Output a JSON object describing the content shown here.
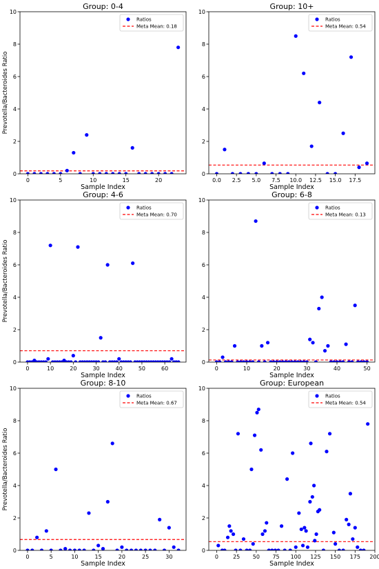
{
  "colors": {
    "points": "#0000ff",
    "mean_line": "#ff0000"
  },
  "chart_data": [
    {
      "type": "scatter",
      "title": "Group: 0-4",
      "xlabel": "Sample Index",
      "ylabel": "Prevotella/Bacteroides Ratio",
      "xlim": [
        -1.2,
        24.2
      ],
      "ylim": [
        0,
        10
      ],
      "xticks": [
        0,
        5,
        10,
        15,
        20
      ],
      "xtick_labels": [
        "0",
        "5",
        "10",
        "15",
        "20"
      ],
      "yticks": [
        0,
        2,
        4,
        6,
        8,
        10
      ],
      "ytick_labels": [
        "0",
        "2",
        "4",
        "6",
        "8",
        "10"
      ],
      "legend": {
        "position": "top-right",
        "points_label": "Ratios",
        "mean_label": "Meta Mean: 0.18"
      },
      "mean": 0.18,
      "points": [
        [
          0,
          0
        ],
        [
          1,
          0
        ],
        [
          2,
          0
        ],
        [
          3,
          0
        ],
        [
          4,
          0
        ],
        [
          5,
          0
        ],
        [
          6,
          0.2
        ],
        [
          7,
          1.3
        ],
        [
          8,
          0
        ],
        [
          9,
          2.4
        ],
        [
          10,
          0
        ],
        [
          11,
          0
        ],
        [
          12,
          0
        ],
        [
          13,
          0
        ],
        [
          14,
          0
        ],
        [
          15,
          0
        ],
        [
          16,
          1.6
        ],
        [
          17,
          0
        ],
        [
          18,
          0
        ],
        [
          19,
          0
        ],
        [
          20,
          0
        ],
        [
          21,
          0
        ],
        [
          22,
          0
        ],
        [
          23,
          7.8
        ]
      ]
    },
    {
      "type": "scatter",
      "title": "Group: 10+",
      "xlabel": "Sample Index",
      "ylabel": "",
      "xlim": [
        -1.0,
        20.0
      ],
      "ylim": [
        0,
        10
      ],
      "xticks": [
        0,
        2.5,
        5,
        7.5,
        10,
        12.5,
        15,
        17.5
      ],
      "xtick_labels": [
        "0.0",
        "2.5",
        "5.0",
        "7.5",
        "10.0",
        "12.5",
        "15.0",
        "17.5"
      ],
      "yticks": [
        0,
        2,
        4,
        6,
        8,
        10
      ],
      "ytick_labels": [
        "0",
        "2",
        "4",
        "6",
        "8",
        "10"
      ],
      "legend": {
        "position": "top-right",
        "points_label": "Ratios",
        "mean_label": "Meta Mean: 0.54"
      },
      "mean": 0.54,
      "points": [
        [
          0,
          0
        ],
        [
          1,
          1.5
        ],
        [
          2,
          0
        ],
        [
          3,
          0
        ],
        [
          4,
          0
        ],
        [
          5,
          0
        ],
        [
          6,
          0.65
        ],
        [
          7,
          0
        ],
        [
          8,
          0
        ],
        [
          9,
          0
        ],
        [
          10,
          8.5
        ],
        [
          11,
          6.2
        ],
        [
          12,
          1.7
        ],
        [
          13,
          4.4
        ],
        [
          14,
          0
        ],
        [
          15,
          0
        ],
        [
          16,
          2.5
        ],
        [
          17,
          7.2
        ],
        [
          18,
          0.4
        ],
        [
          19,
          0.65
        ]
      ]
    },
    {
      "type": "scatter",
      "title": "Group: 4-6",
      "xlabel": "Sample Index",
      "ylabel": "Prevotella/Bacteroides Ratio",
      "xlim": [
        -3.3,
        69.3
      ],
      "ylim": [
        0,
        10
      ],
      "xticks": [
        0,
        10,
        20,
        30,
        40,
        50,
        60
      ],
      "xtick_labels": [
        "0",
        "10",
        "20",
        "30",
        "40",
        "50",
        "60"
      ],
      "yticks": [
        0,
        2,
        4,
        6,
        8,
        10
      ],
      "ytick_labels": [
        "0",
        "2",
        "4",
        "6",
        "8",
        "10"
      ],
      "legend": {
        "position": "top-right",
        "points_label": "Ratios",
        "mean_label": "Meta Mean: 0.70"
      },
      "mean": 0.7,
      "points": [
        [
          0,
          0
        ],
        [
          1,
          0
        ],
        [
          2,
          0
        ],
        [
          3,
          0.1
        ],
        [
          4,
          0
        ],
        [
          5,
          0
        ],
        [
          6,
          0
        ],
        [
          7,
          0
        ],
        [
          8,
          0
        ],
        [
          9,
          0.2
        ],
        [
          10,
          7.2
        ],
        [
          11,
          0
        ],
        [
          12,
          0
        ],
        [
          13,
          0
        ],
        [
          14,
          0
        ],
        [
          15,
          0
        ],
        [
          16,
          0.1
        ],
        [
          17,
          0
        ],
        [
          18,
          0
        ],
        [
          19,
          0
        ],
        [
          20,
          0.4
        ],
        [
          21,
          0
        ],
        [
          22,
          7.1
        ],
        [
          23,
          0
        ],
        [
          24,
          0
        ],
        [
          25,
          0
        ],
        [
          26,
          0
        ],
        [
          27,
          0
        ],
        [
          28,
          0
        ],
        [
          29,
          0
        ],
        [
          30,
          0
        ],
        [
          31,
          0
        ],
        [
          32,
          1.5
        ],
        [
          33,
          0
        ],
        [
          34,
          0
        ],
        [
          35,
          6.0
        ],
        [
          36,
          0
        ],
        [
          37,
          0
        ],
        [
          38,
          0
        ],
        [
          39,
          0
        ],
        [
          40,
          0.2
        ],
        [
          41,
          0
        ],
        [
          42,
          0
        ],
        [
          43,
          0
        ],
        [
          44,
          0
        ],
        [
          45,
          0
        ],
        [
          46,
          6.1
        ],
        [
          47,
          0
        ],
        [
          48,
          0
        ],
        [
          49,
          0
        ],
        [
          50,
          0
        ],
        [
          51,
          0
        ],
        [
          52,
          0
        ],
        [
          53,
          0
        ],
        [
          54,
          0
        ],
        [
          55,
          0
        ],
        [
          56,
          0
        ],
        [
          57,
          0
        ],
        [
          58,
          0
        ],
        [
          59,
          0
        ],
        [
          60,
          0
        ],
        [
          61,
          0
        ],
        [
          62,
          0
        ],
        [
          63,
          0.2
        ],
        [
          64,
          0
        ],
        [
          65,
          0
        ],
        [
          66,
          0
        ]
      ]
    },
    {
      "type": "scatter",
      "title": "Group: 6-8",
      "xlabel": "Sample Index",
      "ylabel": "",
      "xlim": [
        -2.6,
        52.6
      ],
      "ylim": [
        0,
        10
      ],
      "xticks": [
        0,
        10,
        20,
        30,
        40,
        50
      ],
      "xtick_labels": [
        "0",
        "10",
        "20",
        "30",
        "40",
        "50"
      ],
      "yticks": [
        0,
        2,
        4,
        6,
        8,
        10
      ],
      "ytick_labels": [
        "0",
        "2",
        "4",
        "6",
        "8",
        "10"
      ],
      "legend": {
        "position": "top-right",
        "points_label": "Ratios",
        "mean_label": "Meta Mean: 0.13"
      },
      "mean": 0.13,
      "points": [
        [
          0,
          0
        ],
        [
          1,
          0
        ],
        [
          2,
          0.3
        ],
        [
          3,
          0
        ],
        [
          4,
          0
        ],
        [
          5,
          0
        ],
        [
          6,
          1.0
        ],
        [
          7,
          0
        ],
        [
          8,
          0
        ],
        [
          9,
          0
        ],
        [
          10,
          0
        ],
        [
          11,
          0
        ],
        [
          12,
          0
        ],
        [
          13,
          8.7
        ],
        [
          14,
          0
        ],
        [
          15,
          1.0
        ],
        [
          16,
          0
        ],
        [
          17,
          1.2
        ],
        [
          18,
          0
        ],
        [
          19,
          0
        ],
        [
          20,
          0
        ],
        [
          21,
          0
        ],
        [
          22,
          0
        ],
        [
          23,
          0
        ],
        [
          24,
          0
        ],
        [
          25,
          0
        ],
        [
          26,
          0
        ],
        [
          27,
          0
        ],
        [
          28,
          0
        ],
        [
          29,
          0
        ],
        [
          30,
          0
        ],
        [
          31,
          1.4
        ],
        [
          32,
          1.2
        ],
        [
          33,
          0
        ],
        [
          34,
          3.3
        ],
        [
          35,
          4.0
        ],
        [
          36,
          0.7
        ],
        [
          37,
          1.0
        ],
        [
          38,
          0
        ],
        [
          39,
          0
        ],
        [
          40,
          0
        ],
        [
          41,
          0
        ],
        [
          42,
          0
        ],
        [
          43,
          1.1
        ],
        [
          44,
          0
        ],
        [
          45,
          0
        ],
        [
          46,
          3.5
        ],
        [
          47,
          0
        ],
        [
          48,
          0
        ],
        [
          49,
          0
        ],
        [
          50,
          0
        ]
      ]
    },
    {
      "type": "scatter",
      "title": "Group: 8-10",
      "xlabel": "Sample Index",
      "ylabel": "Prevotella/Bacteroides Ratio",
      "xlim": [
        -1.6,
        33.6
      ],
      "ylim": [
        0,
        10
      ],
      "xticks": [
        0,
        5,
        10,
        15,
        20,
        25,
        30
      ],
      "xtick_labels": [
        "0",
        "5",
        "10",
        "15",
        "20",
        "25",
        "30"
      ],
      "yticks": [
        0,
        2,
        4,
        6,
        8,
        10
      ],
      "ytick_labels": [
        "0",
        "2",
        "4",
        "6",
        "8",
        "10"
      ],
      "legend": {
        "position": "top-right",
        "points_label": "Ratios",
        "mean_label": "Meta Mean: 0.67"
      },
      "mean": 0.67,
      "points": [
        [
          0,
          0
        ],
        [
          1,
          0
        ],
        [
          2,
          0.8
        ],
        [
          3,
          0
        ],
        [
          4,
          1.2
        ],
        [
          5,
          0
        ],
        [
          6,
          5.0
        ],
        [
          7,
          0
        ],
        [
          8,
          0.1
        ],
        [
          9,
          0
        ],
        [
          10,
          0
        ],
        [
          11,
          0
        ],
        [
          12,
          0
        ],
        [
          13,
          2.3
        ],
        [
          14,
          0
        ],
        [
          15,
          0.3
        ],
        [
          16,
          0.1
        ],
        [
          17,
          3.0
        ],
        [
          18,
          6.6
        ],
        [
          19,
          0
        ],
        [
          20,
          0.2
        ],
        [
          21,
          0
        ],
        [
          22,
          0
        ],
        [
          23,
          0
        ],
        [
          24,
          0
        ],
        [
          25,
          0
        ],
        [
          26,
          0
        ],
        [
          27,
          0
        ],
        [
          28,
          1.9
        ],
        [
          29,
          0
        ],
        [
          30,
          1.4
        ],
        [
          31,
          0.2
        ],
        [
          32,
          0
        ]
      ]
    },
    {
      "type": "scatter",
      "title": "Group: European",
      "xlabel": "Sample Index",
      "ylabel": "",
      "xlim": [
        -10,
        200
      ],
      "ylim": [
        0,
        10
      ],
      "xticks": [
        0,
        25,
        50,
        75,
        100,
        125,
        150,
        175,
        200
      ],
      "xtick_labels": [
        "0",
        "25",
        "50",
        "75",
        "100",
        "125",
        "150",
        "175",
        "200"
      ],
      "yticks": [
        0,
        2,
        4,
        6,
        8,
        10
      ],
      "ytick_labels": [
        "0",
        "2",
        "4",
        "6",
        "8",
        "10"
      ],
      "legend": {
        "position": "top-right",
        "points_label": "Ratios",
        "mean_label": "Meta Mean: 0.54"
      },
      "mean": 0.54,
      "points": [
        [
          2,
          0.3
        ],
        [
          7,
          0
        ],
        [
          10,
          0
        ],
        [
          14,
          0.8
        ],
        [
          16,
          1.5
        ],
        [
          18,
          1.2
        ],
        [
          21,
          1.0
        ],
        [
          24,
          0
        ],
        [
          27,
          7.2
        ],
        [
          30,
          0
        ],
        [
          34,
          0.7
        ],
        [
          38,
          0
        ],
        [
          42,
          0
        ],
        [
          44,
          5.0
        ],
        [
          46,
          0.4
        ],
        [
          48,
          7.1
        ],
        [
          51,
          8.5
        ],
        [
          53,
          8.7
        ],
        [
          56,
          6.2
        ],
        [
          58,
          1.0
        ],
        [
          61,
          1.2
        ],
        [
          63,
          1.7
        ],
        [
          66,
          0
        ],
        [
          70,
          0
        ],
        [
          74,
          0
        ],
        [
          78,
          0
        ],
        [
          82,
          1.5
        ],
        [
          86,
          0
        ],
        [
          89,
          4.4
        ],
        [
          93,
          0
        ],
        [
          96,
          6.0
        ],
        [
          100,
          0.2
        ],
        [
          104,
          2.3
        ],
        [
          107,
          1.3
        ],
        [
          109,
          0.3
        ],
        [
          111,
          1.4
        ],
        [
          113,
          1.2
        ],
        [
          115,
          0.2
        ],
        [
          118,
          3.0
        ],
        [
          119,
          6.6
        ],
        [
          121,
          3.3
        ],
        [
          123,
          4.0
        ],
        [
          124,
          0.6
        ],
        [
          126,
          1.0
        ],
        [
          128,
          2.4
        ],
        [
          130,
          2.5
        ],
        [
          135,
          0
        ],
        [
          139,
          6.1
        ],
        [
          143,
          7.2
        ],
        [
          148,
          1.1
        ],
        [
          150,
          0.4
        ],
        [
          155,
          0
        ],
        [
          160,
          0
        ],
        [
          164,
          1.9
        ],
        [
          167,
          1.6
        ],
        [
          169,
          3.5
        ],
        [
          172,
          0.7
        ],
        [
          175,
          1.4
        ],
        [
          178,
          0.2
        ],
        [
          182,
          0
        ],
        [
          186,
          0
        ],
        [
          191,
          7.8
        ]
      ]
    }
  ]
}
